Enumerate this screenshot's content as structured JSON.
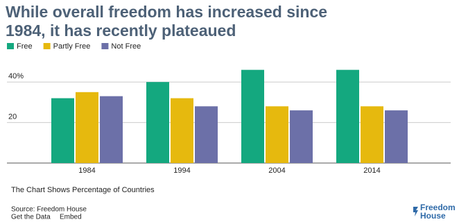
{
  "chart_data": {
    "type": "bar",
    "title": [
      "While overall freedom has increased since",
      "1984, it has recently plateaued"
    ],
    "categories": [
      "1984",
      "1994",
      "2004",
      "2014"
    ],
    "series": [
      {
        "name": "Free",
        "color": "#14a87f",
        "values": [
          32,
          40,
          46,
          46
        ]
      },
      {
        "name": "Partly Free",
        "color": "#e6b90e",
        "values": [
          35,
          32,
          28,
          28
        ]
      },
      {
        "name": "Not Free",
        "color": "#6c70a8",
        "values": [
          33,
          28,
          26,
          26
        ]
      }
    ],
    "ylim": [
      0,
      50
    ],
    "yticks": [
      20,
      {
        "value": 40,
        "label": "40%"
      }
    ],
    "grid": true,
    "legend": "top-left"
  },
  "footer": {
    "note": "The Chart Shows Percentage of Countries",
    "source": "Source: Freedom House",
    "links": [
      "Get the Data",
      "Embed"
    ],
    "logo": [
      "Freedom",
      "House"
    ]
  }
}
